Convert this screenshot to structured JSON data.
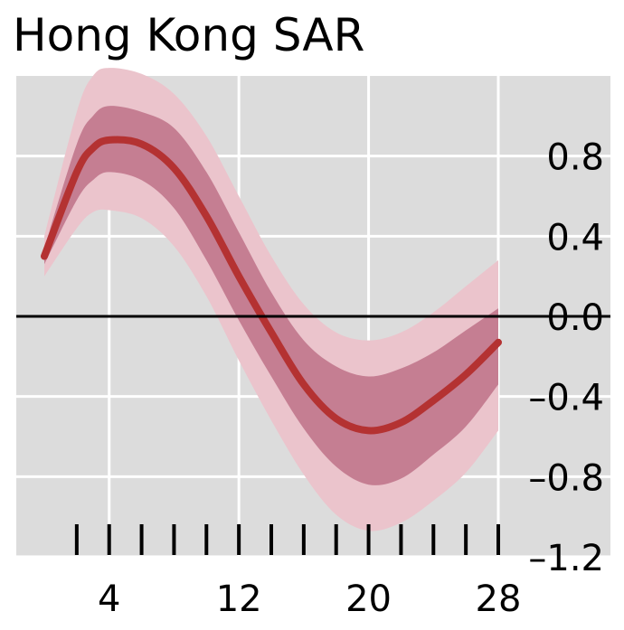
{
  "chart_data": {
    "type": "area",
    "title": "Hong Kong SAR",
    "xlabel": "",
    "ylabel": "",
    "xlim": [
      0,
      28
    ],
    "ylim": [
      -1.2,
      1.2
    ],
    "x_ticks": [
      0,
      2,
      4,
      6,
      8,
      10,
      12,
      14,
      16,
      18,
      20,
      22,
      24,
      26,
      28
    ],
    "x_tick_labels": [
      "4",
      "12",
      "20",
      "28"
    ],
    "x_tick_label_values": [
      4,
      12,
      20,
      28
    ],
    "y_ticks": [
      0.8,
      0.4,
      0.0,
      -0.4,
      -0.8,
      -1.2
    ],
    "y_tick_labels": [
      "0.8",
      "0.4",
      "0.0",
      "–0.4",
      "–0.8",
      "–1.2"
    ],
    "grid": true,
    "legend": "none",
    "zero_line": true,
    "colors": {
      "plot_bg": "#dcdcdc",
      "grid": "#ffffff",
      "outer_band": "#ebc4cc",
      "inner_band": "#c57e92",
      "line": "#b43232",
      "zero_line": "#000000"
    },
    "x": [
      0,
      2,
      3,
      4,
      6,
      8,
      10,
      12,
      14,
      16,
      18,
      20,
      22,
      24,
      26,
      28
    ],
    "series": [
      {
        "role": "median",
        "values": [
          0.3,
          0.72,
          0.84,
          0.88,
          0.86,
          0.74,
          0.5,
          0.2,
          -0.08,
          -0.34,
          -0.51,
          -0.57,
          -0.53,
          -0.42,
          -0.29,
          -0.13
        ]
      },
      {
        "role": "inner_upper",
        "values": [
          0.34,
          0.86,
          1.0,
          1.05,
          1.02,
          0.94,
          0.72,
          0.42,
          0.12,
          -0.12,
          -0.25,
          -0.3,
          -0.26,
          -0.18,
          -0.07,
          0.04
        ]
      },
      {
        "role": "inner_lower",
        "values": [
          0.26,
          0.58,
          0.68,
          0.72,
          0.68,
          0.54,
          0.28,
          -0.02,
          -0.3,
          -0.56,
          -0.75,
          -0.84,
          -0.81,
          -0.69,
          -0.55,
          -0.34
        ]
      },
      {
        "role": "outer_upper",
        "values": [
          0.4,
          1.02,
          1.2,
          1.24,
          1.21,
          1.11,
          0.9,
          0.6,
          0.3,
          0.06,
          -0.08,
          -0.12,
          -0.08,
          0.02,
          0.15,
          0.28
        ]
      },
      {
        "role": "outer_lower",
        "values": [
          0.2,
          0.44,
          0.52,
          0.53,
          0.49,
          0.35,
          0.1,
          -0.22,
          -0.52,
          -0.79,
          -0.99,
          -1.07,
          -1.03,
          -0.92,
          -0.78,
          -0.57
        ]
      }
    ]
  }
}
